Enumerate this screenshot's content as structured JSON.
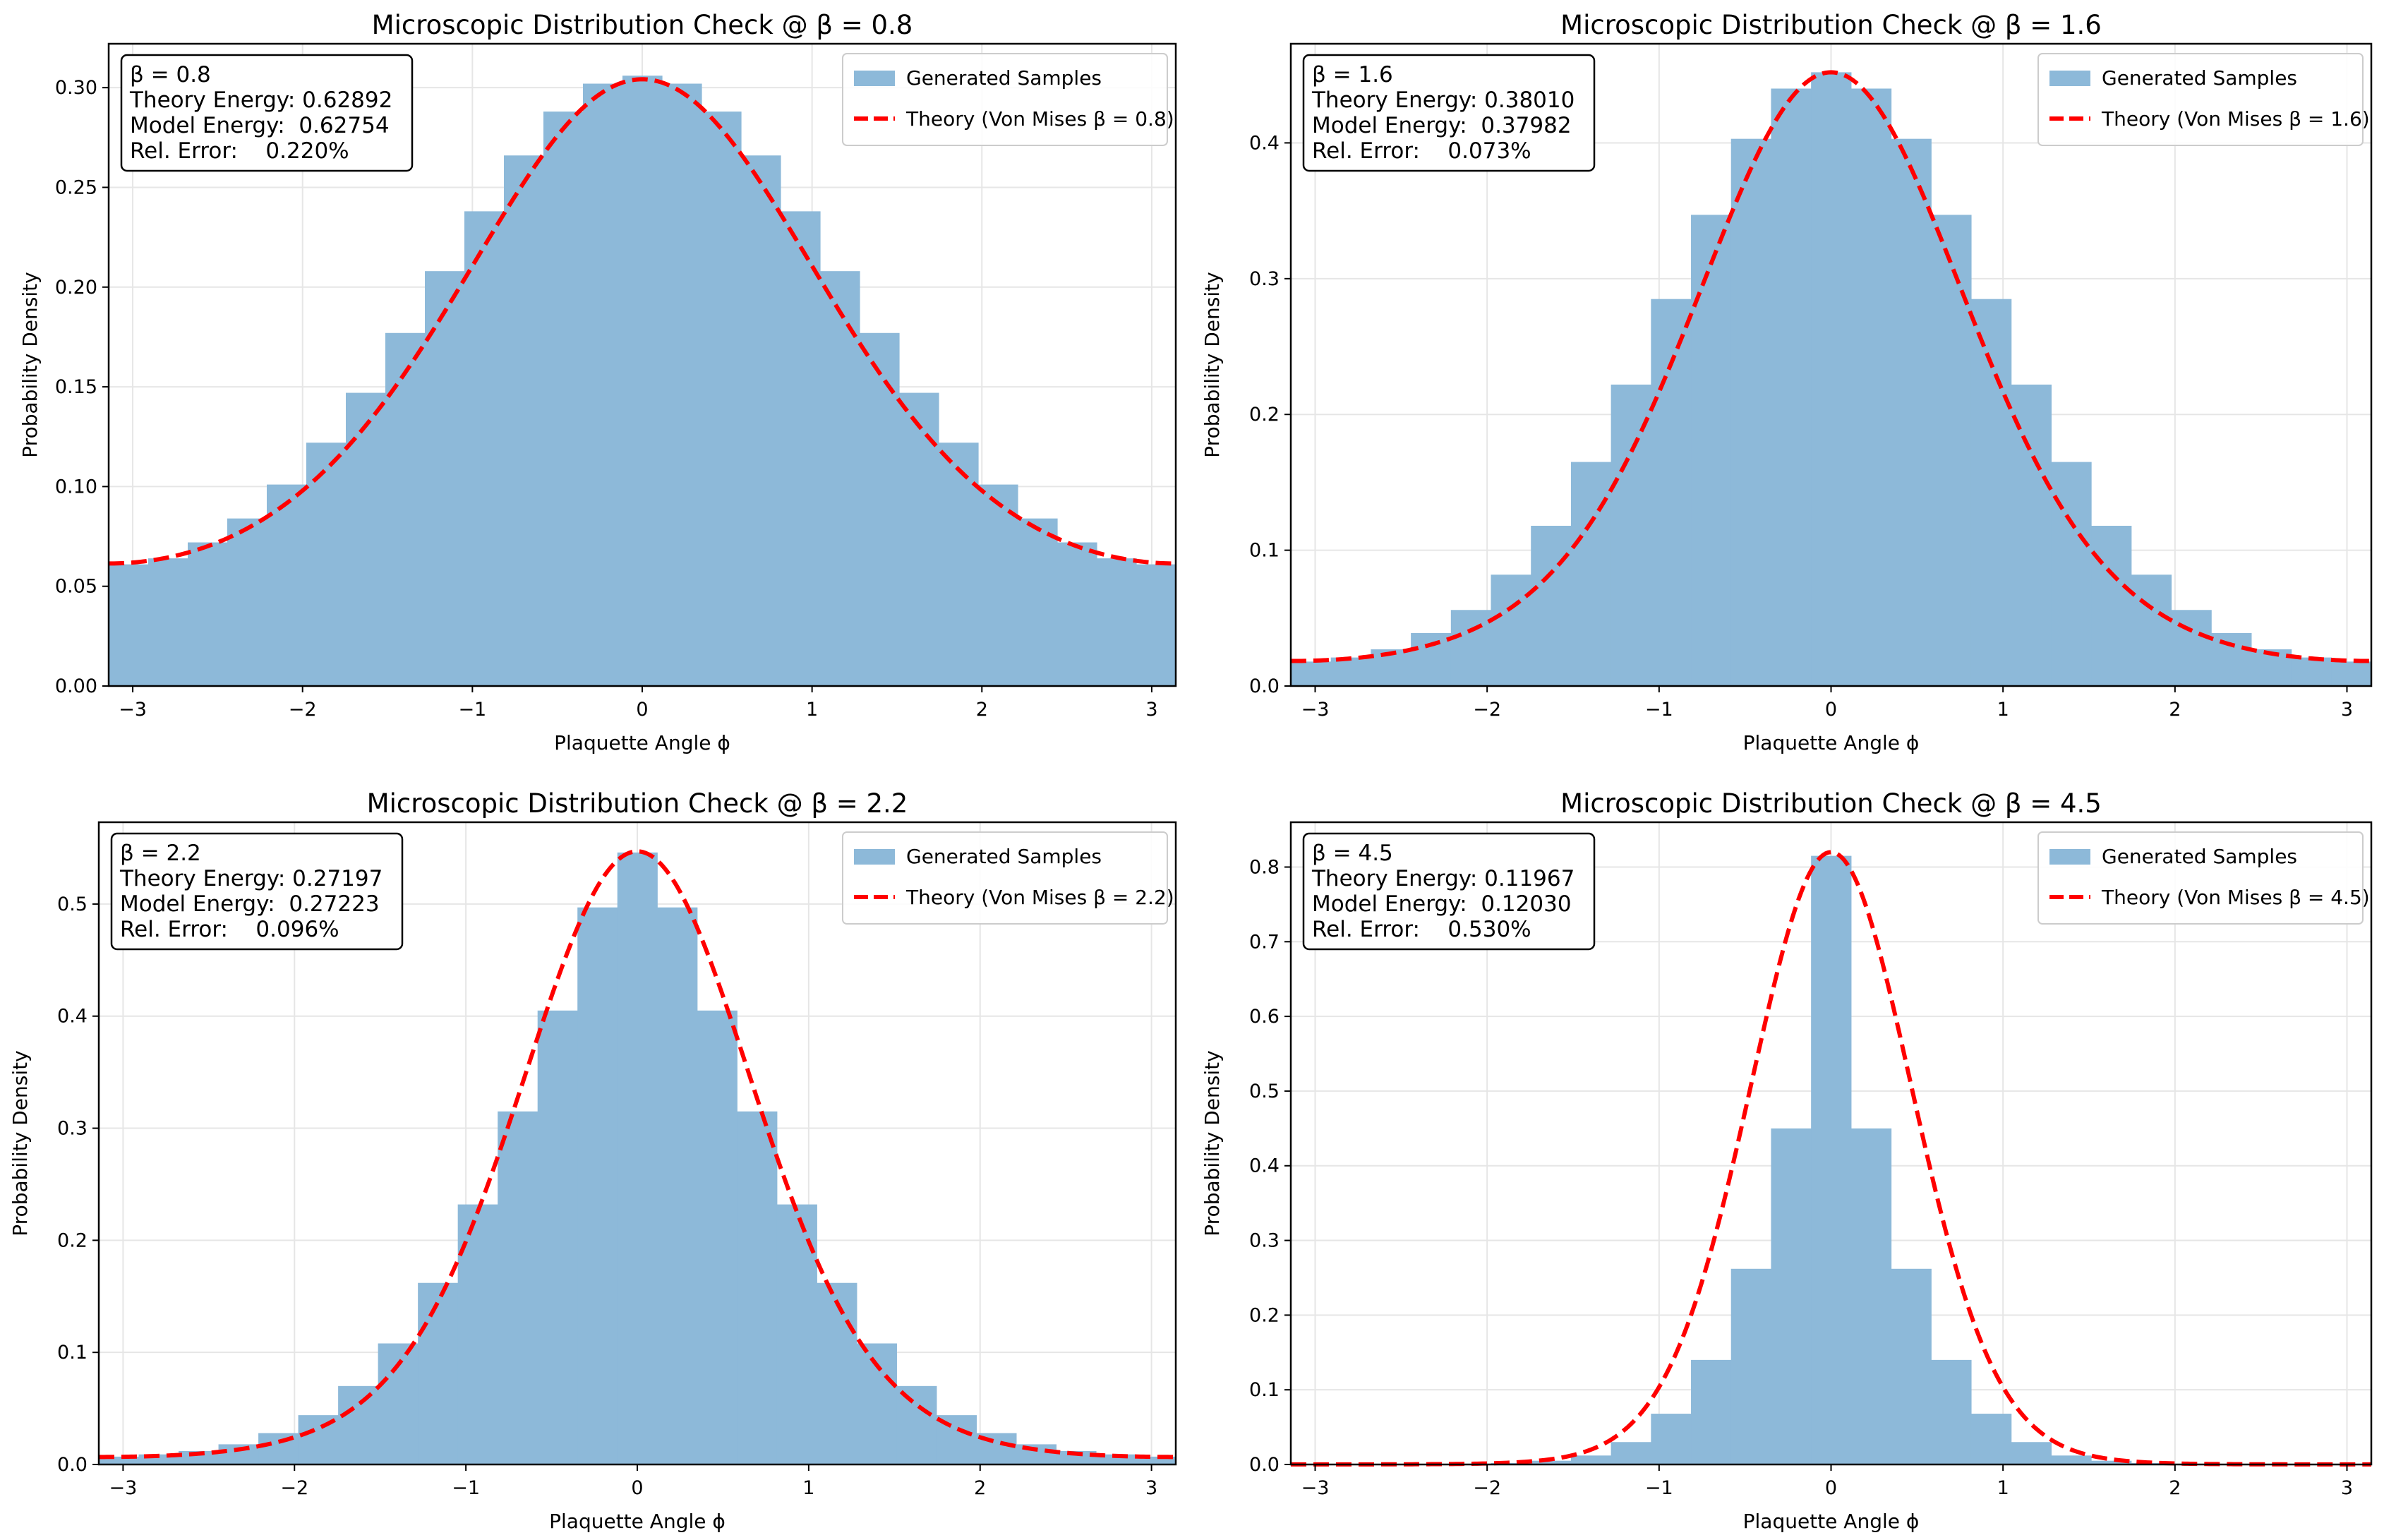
{
  "figure": {
    "x_ticks": [
      "−3",
      "−2",
      "−1",
      "0",
      "1",
      "2",
      "3"
    ]
  },
  "colors": {
    "hist_fill": "#8db9d9",
    "theory_line": "#ff0000",
    "grid": "#e6e6e6",
    "axis": "#000000"
  },
  "chart_data": [
    {
      "type": "bar",
      "title": "Microscopic Distribution Check @ β = 0.8",
      "xlabel": "Plaquette Angle ϕ",
      "ylabel": "Probability Density",
      "xlim": [
        -3.14159,
        3.14159
      ],
      "ylim": [
        0,
        0.322
      ],
      "y_ticks": [
        0.0,
        0.05,
        0.1,
        0.15,
        0.2,
        0.25,
        0.3
      ],
      "y_tick_labels": [
        "0.00",
        "0.05",
        "0.10",
        "0.15",
        "0.20",
        "0.25",
        "0.30"
      ],
      "grid": true,
      "legend_position": "top-right",
      "series": [
        {
          "name": "Generated Samples",
          "kind": "histogram",
          "values": [
            0.061,
            0.064,
            0.072,
            0.084,
            0.101,
            0.122,
            0.147,
            0.177,
            0.208,
            0.238,
            0.266,
            0.288,
            0.302,
            0.306,
            0.302,
            0.288,
            0.266,
            0.238,
            0.208,
            0.177,
            0.147,
            0.122,
            0.101,
            0.084,
            0.072,
            0.064,
            0.061
          ]
        },
        {
          "name": "Theory (Von Mises β = 0.8)",
          "kind": "von_mises",
          "beta": 0.8,
          "peak": 0.3042
        }
      ],
      "stats": {
        "beta_label": "β = 0.8",
        "theory_energy": "Theory Energy: 0.62892",
        "model_energy": "Model Energy:  0.62754",
        "rel_error": "Rel. Error:    0.220%"
      }
    },
    {
      "type": "bar",
      "title": "Microscopic Distribution Check @ β = 1.6",
      "xlabel": "Plaquette Angle ϕ",
      "ylabel": "Probability Density",
      "xlim": [
        -3.14159,
        3.14159
      ],
      "ylim": [
        0,
        0.473
      ],
      "y_ticks": [
        0.0,
        0.1,
        0.2,
        0.3,
        0.4
      ],
      "y_tick_labels": [
        "0.0",
        "0.1",
        "0.2",
        "0.3",
        "0.4"
      ],
      "grid": true,
      "legend_position": "top-right",
      "series": [
        {
          "name": "Generated Samples",
          "kind": "histogram",
          "values": [
            0.018,
            0.021,
            0.027,
            0.039,
            0.056,
            0.082,
            0.118,
            0.165,
            0.222,
            0.285,
            0.347,
            0.403,
            0.44,
            0.452,
            0.44,
            0.403,
            0.347,
            0.285,
            0.222,
            0.165,
            0.118,
            0.082,
            0.056,
            0.039,
            0.027,
            0.021,
            0.018
          ]
        },
        {
          "name": "Theory (Von Mises β = 1.6)",
          "kind": "von_mises",
          "beta": 1.6,
          "peak": 0.452
        }
      ],
      "stats": {
        "beta_label": "β = 1.6",
        "theory_energy": "Theory Energy: 0.38010",
        "model_energy": "Model Energy:  0.37982",
        "rel_error": "Rel. Error:    0.073%"
      }
    },
    {
      "type": "bar",
      "title": "Microscopic Distribution Check @ β = 2.2",
      "xlabel": "Plaquette Angle ϕ",
      "ylabel": "Probability Density",
      "xlim": [
        -3.14159,
        3.14159
      ],
      "ylim": [
        0,
        0.573
      ],
      "y_ticks": [
        0.0,
        0.1,
        0.2,
        0.3,
        0.4,
        0.5
      ],
      "y_tick_labels": [
        "0.0",
        "0.1",
        "0.2",
        "0.3",
        "0.4",
        "0.5"
      ],
      "grid": true,
      "legend_position": "top-right",
      "series": [
        {
          "name": "Generated Samples",
          "kind": "histogram",
          "values": [
            0.007,
            0.009,
            0.012,
            0.018,
            0.028,
            0.044,
            0.07,
            0.108,
            0.162,
            0.232,
            0.315,
            0.405,
            0.497,
            0.546,
            0.497,
            0.405,
            0.315,
            0.232,
            0.162,
            0.108,
            0.07,
            0.044,
            0.028,
            0.018,
            0.012,
            0.009,
            0.007
          ]
        },
        {
          "name": "Theory (Von Mises β = 2.2)",
          "kind": "von_mises",
          "beta": 2.2,
          "peak": 0.547
        }
      ],
      "stats": {
        "beta_label": "β = 2.2",
        "theory_energy": "Theory Energy: 0.27197",
        "model_energy": "Model Energy:  0.27223",
        "rel_error": "Rel. Error:    0.096%"
      }
    },
    {
      "type": "bar",
      "title": "Microscopic Distribution Check @ β = 4.5",
      "xlabel": "Plaquette Angle ϕ",
      "ylabel": "Probability Density",
      "xlim": [
        -3.14159,
        3.14159
      ],
      "ylim": [
        0,
        0.86
      ],
      "y_ticks": [
        0.0,
        0.1,
        0.2,
        0.3,
        0.4,
        0.5,
        0.6,
        0.7,
        0.8
      ],
      "y_tick_labels": [
        "0.0",
        "0.1",
        "0.2",
        "0.3",
        "0.4",
        "0.5",
        "0.6",
        "0.7",
        "0.8"
      ],
      "grid": true,
      "legend_position": "top-right",
      "series": [
        {
          "name": "Generated Samples",
          "kind": "histogram",
          "values": [
            0.0,
            0.0,
            0.0,
            0.0,
            0.001,
            0.002,
            0.005,
            0.012,
            0.03,
            0.068,
            0.14,
            0.262,
            0.45,
            0.815,
            0.45,
            0.262,
            0.14,
            0.068,
            0.03,
            0.012,
            0.005,
            0.002,
            0.001,
            0.0,
            0.0,
            0.0,
            0.0
          ]
        },
        {
          "name": "Theory (Von Mises β = 4.5)",
          "kind": "von_mises",
          "beta": 4.5,
          "peak": 0.82
        }
      ],
      "stats": {
        "beta_label": "β = 4.5",
        "theory_energy": "Theory Energy: 0.11967",
        "model_energy": "Model Energy:  0.12030",
        "rel_error": "Rel. Error:    0.530%"
      }
    }
  ]
}
